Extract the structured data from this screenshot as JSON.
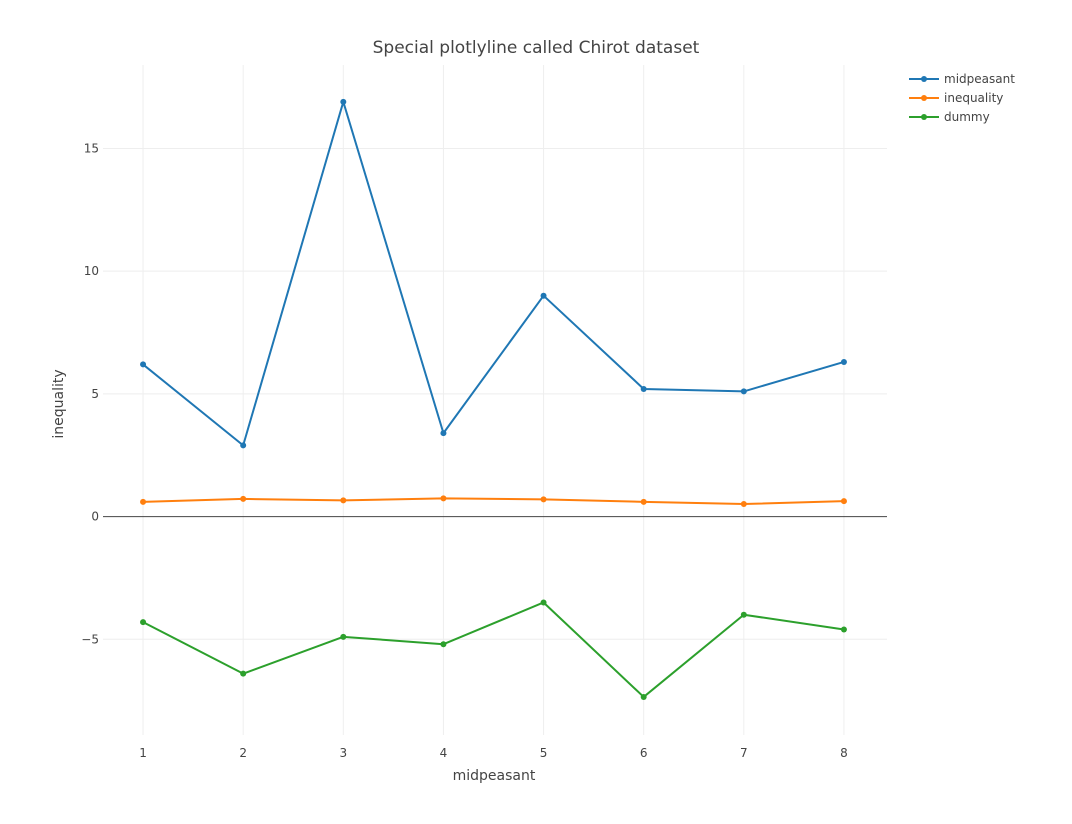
{
  "chart_data": {
    "type": "line",
    "title": "Special plotlyline called Chirot dataset",
    "xlabel": "midpeasant",
    "ylabel": "inequality",
    "x": [
      1,
      2,
      3,
      4,
      5,
      6,
      7,
      8
    ],
    "x_tick_labels": [
      "1",
      "2",
      "3",
      "4",
      "5",
      "6",
      "7",
      "8"
    ],
    "xlim": [
      0.6,
      8.43
    ],
    "ylim": [
      -8.9,
      18.4
    ],
    "y_ticks": [
      -5,
      0,
      5,
      10,
      15
    ],
    "y_tick_labels": [
      "−5",
      "0",
      "5",
      "10",
      "15"
    ],
    "grid": true,
    "legend_position": "top-right",
    "series": [
      {
        "name": "midpeasant",
        "color": "#1f77b4",
        "values": [
          6.2,
          2.9,
          16.9,
          3.4,
          9.0,
          5.2,
          5.1,
          6.3
        ]
      },
      {
        "name": "inequality",
        "color": "#ff7f0e",
        "values": [
          0.6,
          0.72,
          0.66,
          0.74,
          0.7,
          0.6,
          0.51,
          0.63
        ]
      },
      {
        "name": "dummy",
        "color": "#2ca02c",
        "values": [
          -4.3,
          -6.4,
          -4.9,
          -5.2,
          -3.5,
          -7.35,
          -4.0,
          -4.6
        ]
      }
    ]
  }
}
